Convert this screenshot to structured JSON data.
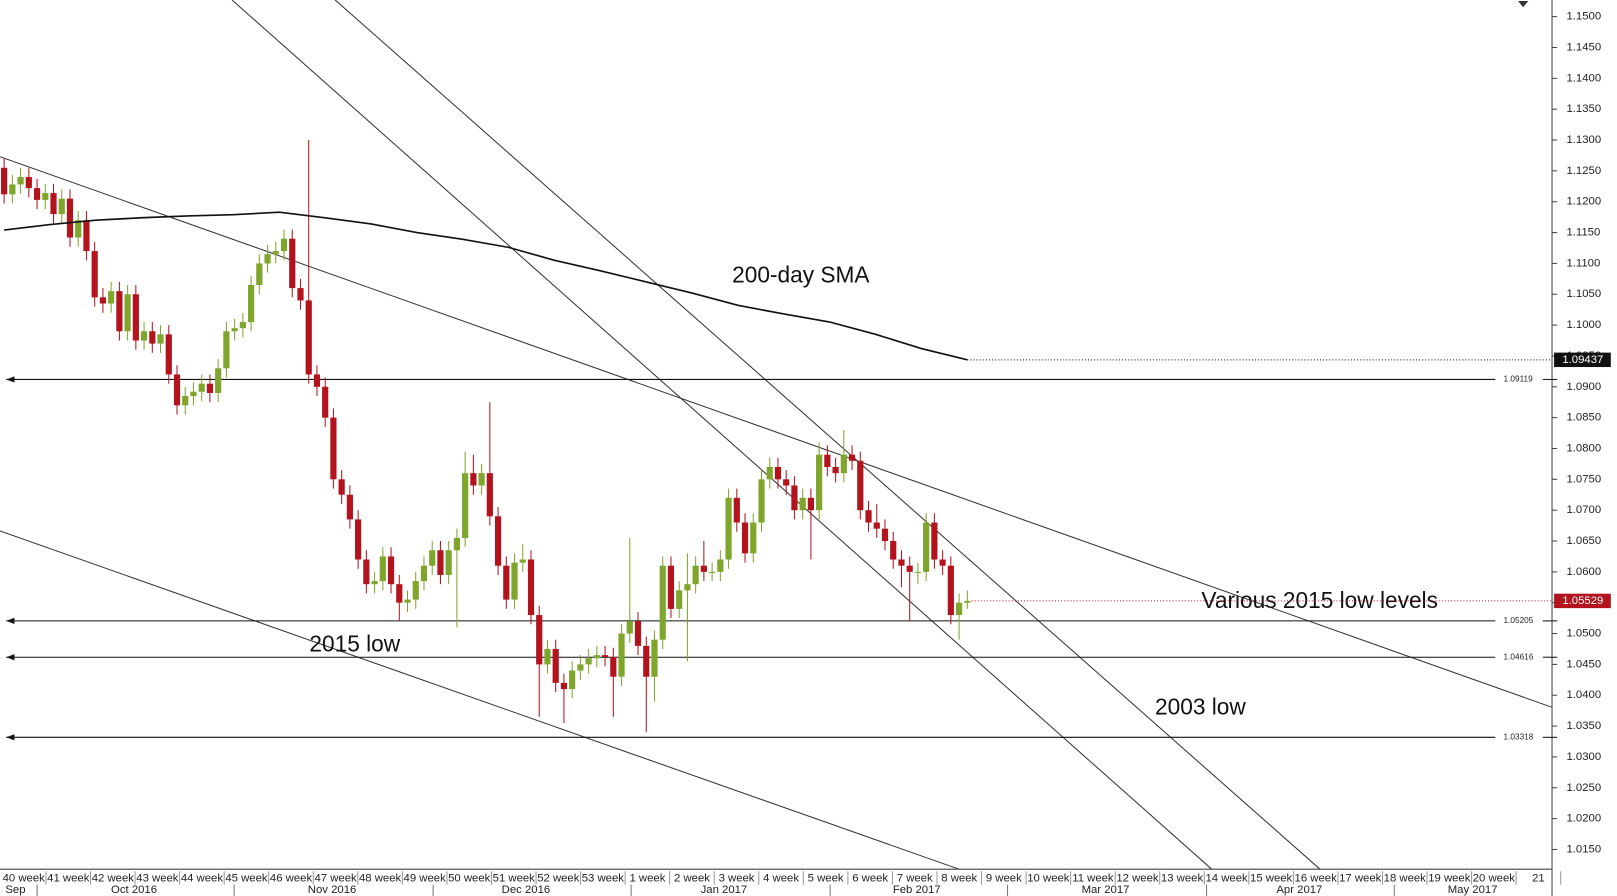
{
  "chart_data": {
    "type": "candlestick",
    "ylim": [
      1.0118,
      1.1527
    ],
    "yticks": [
      {
        "value": 1.15,
        "label": "1.1500"
      },
      {
        "value": 1.145,
        "label": "1.1450"
      },
      {
        "value": 1.14,
        "label": "1.1400"
      },
      {
        "value": 1.135,
        "label": "1.1350"
      },
      {
        "value": 1.13,
        "label": "1.1300"
      },
      {
        "value": 1.125,
        "label": "1.1250"
      },
      {
        "value": 1.12,
        "label": "1.1200"
      },
      {
        "value": 1.115,
        "label": "1.1150"
      },
      {
        "value": 1.11,
        "label": "1.1100"
      },
      {
        "value": 1.105,
        "label": "1.1050"
      },
      {
        "value": 1.1,
        "label": "1.1000"
      },
      {
        "value": 1.095,
        "label": "1.0950"
      },
      {
        "value": 1.09,
        "label": "1.0900"
      },
      {
        "value": 1.085,
        "label": "1.0850"
      },
      {
        "value": 1.08,
        "label": "1.0800"
      },
      {
        "value": 1.075,
        "label": "1.0750"
      },
      {
        "value": 1.07,
        "label": "1.0700"
      },
      {
        "value": 1.065,
        "label": "1.0650"
      },
      {
        "value": 1.06,
        "label": "1.0600"
      },
      {
        "value": 1.055,
        "label": "1.0550"
      },
      {
        "value": 1.05,
        "label": "1.0500"
      },
      {
        "value": 1.045,
        "label": "1.0450"
      },
      {
        "value": 1.04,
        "label": "1.0400"
      },
      {
        "value": 1.035,
        "label": "1.0350"
      },
      {
        "value": 1.03,
        "label": "1.0300"
      },
      {
        "value": 1.025,
        "label": "1.0250"
      },
      {
        "value": 1.02,
        "label": "1.0200"
      },
      {
        "value": 1.015,
        "label": "1.0150"
      }
    ],
    "up_color": "#7fa52c",
    "down_color": "#b3131d",
    "open": [
      1.1255,
      1.1212,
      1.1228,
      1.124,
      1.1222,
      1.1203,
      1.1214,
      1.118,
      1.1205,
      1.1142,
      1.117,
      1.112,
      1.1045,
      1.1035,
      1.1055,
      1.099,
      1.105,
      1.0975,
      1.099,
      1.097,
      1.0985,
      1.092,
      1.087,
      1.0885,
      1.0892,
      1.0905,
      1.089,
      1.093,
      1.099,
      1.0995,
      1.1005,
      1.1065,
      1.11,
      1.1115,
      1.112,
      1.114,
      1.106,
      1.104,
      1.092,
      1.09,
      1.085,
      1.075,
      1.0725,
      1.0685,
      1.062,
      1.058,
      1.0585,
      1.0625,
      1.058,
      1.055,
      1.0555,
      1.0585,
      1.061,
      1.0635,
      1.0595,
      1.0635,
      1.0655,
      1.076,
      1.074,
      1.076,
      1.069,
      1.061,
      1.0555,
      1.0615,
      1.062,
      1.053,
      1.045,
      1.0475,
      1.042,
      1.041,
      1.044,
      1.045,
      1.046,
      1.0465,
      1.0462,
      1.043,
      1.05,
      1.052,
      1.048,
      1.043,
      1.049,
      1.061,
      1.054,
      1.057,
      1.058,
      1.061,
      1.06,
      1.06,
      1.062,
      1.072,
      1.068,
      1.063,
      1.068,
      1.075,
      1.077,
      1.075,
      1.074,
      1.07,
      1.072,
      1.07,
      1.079,
      1.077,
      1.076,
      1.079,
      1.078,
      1.07,
      1.068,
      1.067,
      1.065,
      1.062,
      1.061,
      1.06,
      1.06,
      1.068,
      1.062,
      1.061,
      1.053,
      1.055
    ],
    "high": [
      1.127,
      1.1243,
      1.1255,
      1.1255,
      1.1237,
      1.1229,
      1.1229,
      1.122,
      1.122,
      1.1185,
      1.1185,
      1.1135,
      1.106,
      1.107,
      1.107,
      1.1065,
      1.1065,
      1.1005,
      1.1005,
      1.1,
      1.1,
      1.0935,
      1.09,
      1.0907,
      1.092,
      1.092,
      1.0945,
      1.1005,
      1.101,
      1.102,
      1.108,
      1.1115,
      1.113,
      1.1135,
      1.1155,
      1.1155,
      1.1075,
      1.13,
      1.0935,
      1.0915,
      1.0865,
      1.0765,
      1.074,
      1.07,
      1.0635,
      1.06,
      1.064,
      1.064,
      1.0595,
      1.057,
      1.06,
      1.0625,
      1.065,
      1.065,
      1.065,
      1.067,
      1.0795,
      1.079,
      1.0775,
      1.0875,
      1.0705,
      1.0625,
      1.063,
      1.0645,
      1.0635,
      1.0545,
      1.049,
      1.049,
      1.0435,
      1.0455,
      1.0465,
      1.0475,
      1.048,
      1.048,
      1.0477,
      1.0515,
      1.0655,
      1.0535,
      1.0495,
      1.0505,
      1.0625,
      1.0625,
      1.0585,
      1.063,
      1.0625,
      1.065,
      1.0615,
      1.0635,
      1.0735,
      1.0735,
      1.0695,
      1.0695,
      1.0765,
      1.0785,
      1.0785,
      1.0765,
      1.0755,
      1.0735,
      1.0735,
      1.081,
      1.0805,
      1.0785,
      1.083,
      1.0805,
      1.0795,
      1.0715,
      1.071,
      1.0685,
      1.0665,
      1.0635,
      1.0625,
      1.0615,
      1.0695,
      1.0695,
      1.0635,
      1.0625,
      1.0565,
      1.057
    ],
    "low": [
      1.1197,
      1.1197,
      1.1213,
      1.1207,
      1.1188,
      1.1188,
      1.1165,
      1.1165,
      1.1127,
      1.1127,
      1.1105,
      1.103,
      1.102,
      1.102,
      1.0975,
      1.0975,
      1.096,
      1.096,
      1.0955,
      1.0955,
      1.0905,
      1.0855,
      1.0855,
      1.087,
      1.0877,
      1.0875,
      1.0875,
      1.0915,
      1.0975,
      1.098,
      1.099,
      1.105,
      1.1085,
      1.11,
      1.1105,
      1.1045,
      1.1025,
      1.0905,
      1.0885,
      1.0835,
      1.0735,
      1.071,
      1.067,
      1.0605,
      1.0565,
      1.0565,
      1.057,
      1.0565,
      1.052,
      1.0535,
      1.054,
      1.057,
      1.0595,
      1.058,
      1.058,
      1.051,
      1.064,
      1.0725,
      1.0725,
      1.0675,
      1.0595,
      1.054,
      1.054,
      1.06,
      1.0515,
      1.0365,
      1.0435,
      1.0405,
      1.0355,
      1.0395,
      1.0425,
      1.0435,
      1.0445,
      1.0447,
      1.0365,
      1.0415,
      1.0485,
      1.0465,
      1.034,
      1.039,
      1.0475,
      1.0525,
      1.0525,
      1.0455,
      1.0565,
      1.0585,
      1.0585,
      1.0585,
      1.0605,
      1.0665,
      1.0615,
      1.0615,
      1.0665,
      1.0735,
      1.0735,
      1.0725,
      1.0685,
      1.0685,
      1.062,
      1.0685,
      1.0755,
      1.0745,
      1.0745,
      1.0765,
      1.0685,
      1.0665,
      1.0655,
      1.0635,
      1.0605,
      1.0575,
      1.052,
      1.058,
      1.0585,
      1.0605,
      1.0595,
      1.0515,
      1.049,
      1.054
    ],
    "close": [
      1.1212,
      1.1228,
      1.124,
      1.1222,
      1.1203,
      1.1214,
      1.118,
      1.1205,
      1.1142,
      1.117,
      1.112,
      1.1045,
      1.1035,
      1.1055,
      1.099,
      1.105,
      1.0975,
      1.099,
      1.097,
      1.0985,
      1.092,
      1.087,
      1.0885,
      1.0892,
      1.0905,
      1.089,
      1.093,
      1.099,
      1.0995,
      1.1005,
      1.1065,
      1.11,
      1.1115,
      1.112,
      1.114,
      1.106,
      1.104,
      1.092,
      1.09,
      1.085,
      1.075,
      1.0725,
      1.0685,
      1.062,
      1.058,
      1.0585,
      1.0625,
      1.058,
      1.055,
      1.0555,
      1.0585,
      1.061,
      1.0635,
      1.0595,
      1.0635,
      1.0655,
      1.076,
      1.074,
      1.076,
      1.069,
      1.061,
      1.0555,
      1.0615,
      1.062,
      1.053,
      1.045,
      1.0475,
      1.042,
      1.041,
      1.044,
      1.045,
      1.046,
      1.0465,
      1.0462,
      1.043,
      1.05,
      1.052,
      1.048,
      1.043,
      1.049,
      1.061,
      1.054,
      1.057,
      1.058,
      1.061,
      1.06,
      1.06,
      1.062,
      1.072,
      1.068,
      1.063,
      1.068,
      1.075,
      1.077,
      1.075,
      1.074,
      1.07,
      1.072,
      1.07,
      1.079,
      1.077,
      1.076,
      1.079,
      1.078,
      1.07,
      1.068,
      1.067,
      1.065,
      1.062,
      1.061,
      1.06,
      1.06,
      1.068,
      1.062,
      1.061,
      1.053,
      1.055,
      1.05529
    ],
    "sma": {
      "name": "200-day SMA",
      "color": "#111111",
      "values": [
        1.1154,
        1.1163,
        1.117,
        1.1174,
        1.1177,
        1.1179,
        1.1183,
        1.1174,
        1.1164,
        1.115,
        1.1139,
        1.1126,
        1.1105,
        1.1088,
        1.107,
        1.1052,
        1.1032,
        1.1018,
        1.1005,
        1.0985,
        1.0962,
        1.09437
      ]
    },
    "levels": [
      1.09119,
      1.05205,
      1.04616,
      1.03318
    ],
    "annotations": [
      "Various 2015 low levels",
      "2015 low",
      "2003 low"
    ],
    "week_labels": [
      "40 week",
      "41 week",
      "42 week",
      "43 week",
      "44 week",
      "45 week",
      "46 week",
      "47 week",
      "48 week",
      "49 week",
      "50 week",
      "51 week",
      "52 week",
      "53 week",
      "1 week",
      "2 week",
      "3 week",
      "4 week",
      "5 week",
      "6 week",
      "7 week",
      "8 week",
      "9 week",
      "10 week",
      "11 week",
      "12 week",
      "13 week",
      "14 week",
      "15 week",
      "16 week",
      "17 week",
      "18 week",
      "19 week",
      "20 week",
      "21"
    ],
    "month_labels": [
      "Sep",
      "Oct 2016",
      "Nov 2016",
      "Dec 2016",
      "Jan 2017",
      "Feb 2017",
      "Mar 2017",
      "Apr 2017",
      "May 2017"
    ]
  }
}
